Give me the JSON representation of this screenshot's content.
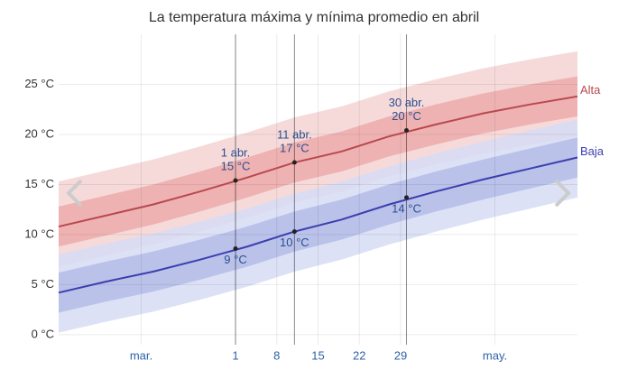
{
  "chart_data": {
    "type": "line",
    "title": "La temperatura máxima y mínima promedio en abril",
    "x": [
      61,
      69,
      77,
      85,
      93,
      101,
      109,
      117,
      125,
      133,
      141,
      149
    ],
    "xlim": [
      61,
      149
    ],
    "xticks": [
      {
        "value": 75,
        "label": "mar."
      },
      {
        "value": 91,
        "label": "1"
      },
      {
        "value": 98,
        "label": "8"
      },
      {
        "value": 105,
        "label": "15"
      },
      {
        "value": 112,
        "label": "22"
      },
      {
        "value": 119,
        "label": "29"
      },
      {
        "value": 135,
        "label": "may."
      }
    ],
    "ylim": [
      -1,
      30
    ],
    "yticks": [
      {
        "value": 0,
        "label": "0 °C"
      },
      {
        "value": 5,
        "label": "5 °C"
      },
      {
        "value": 10,
        "label": "10 °C"
      },
      {
        "value": 15,
        "label": "15 °C"
      },
      {
        "value": 20,
        "label": "20 °C"
      },
      {
        "value": 25,
        "label": "25 °C"
      }
    ],
    "grid": true,
    "series": [
      {
        "name": "Alta",
        "color": "#b8494e",
        "values": [
          10.8,
          11.9,
          13.0,
          14.3,
          15.7,
          17.2,
          18.3,
          19.8,
          21.0,
          22.1,
          23.0,
          23.8
        ]
      },
      {
        "name": "Baja",
        "color": "#3b3fae",
        "values": [
          4.2,
          5.3,
          6.3,
          7.5,
          8.8,
          10.3,
          11.5,
          13.0,
          14.3,
          15.5,
          16.6,
          17.7
        ]
      }
    ],
    "bands": [
      {
        "color": "#f5d3d3",
        "low": [
          6.8,
          7.9,
          9.0,
          10.3,
          11.7,
          13.2,
          14.3,
          15.8,
          17.0,
          18.1,
          19.0,
          19.8
        ],
        "high": [
          15.3,
          16.4,
          17.5,
          18.8,
          20.2,
          21.7,
          22.8,
          24.3,
          25.5,
          26.6,
          27.5,
          28.3
        ]
      },
      {
        "color": "#d6dcf4",
        "low": [
          0.2,
          1.3,
          2.3,
          3.5,
          4.8,
          6.3,
          7.5,
          9.0,
          10.3,
          11.5,
          12.6,
          13.7
        ],
        "high": [
          8.0,
          9.1,
          10.1,
          11.3,
          12.6,
          14.1,
          15.3,
          16.8,
          18.1,
          19.3,
          20.4,
          21.5
        ]
      },
      {
        "color": "#b4bce8",
        "low": [
          2.2,
          3.3,
          4.3,
          5.5,
          6.8,
          8.3,
          9.5,
          11.0,
          12.3,
          13.5,
          14.6,
          15.7
        ],
        "high": [
          6.2,
          7.3,
          8.3,
          9.5,
          10.8,
          12.3,
          13.5,
          15.0,
          16.3,
          17.5,
          18.6,
          19.7
        ]
      },
      {
        "color": "#edaaab",
        "low": [
          8.8,
          9.9,
          11.0,
          12.3,
          13.7,
          15.2,
          16.3,
          17.8,
          19.0,
          20.1,
          21.0,
          21.8
        ],
        "high": [
          12.8,
          13.9,
          15.0,
          16.3,
          17.7,
          19.2,
          20.3,
          21.8,
          23.0,
          24.1,
          25.0,
          25.8
        ]
      }
    ],
    "annotations": [
      {
        "x": 91,
        "date": "1 abr.",
        "value": 15.4,
        "value_label": "15 °C"
      },
      {
        "x": 101,
        "date": "11 abr.",
        "value": 17.2,
        "value_label": "17 °C"
      },
      {
        "x": 120,
        "date": "30 abr.",
        "value": 20.4,
        "value_label": "20 °C"
      },
      {
        "x": 91,
        "value": 8.6,
        "value_label": "9 °C"
      },
      {
        "x": 101,
        "value": 10.3,
        "value_label": "10 °C"
      },
      {
        "x": 120,
        "value": 13.7,
        "value_label": "14 °C"
      }
    ]
  }
}
